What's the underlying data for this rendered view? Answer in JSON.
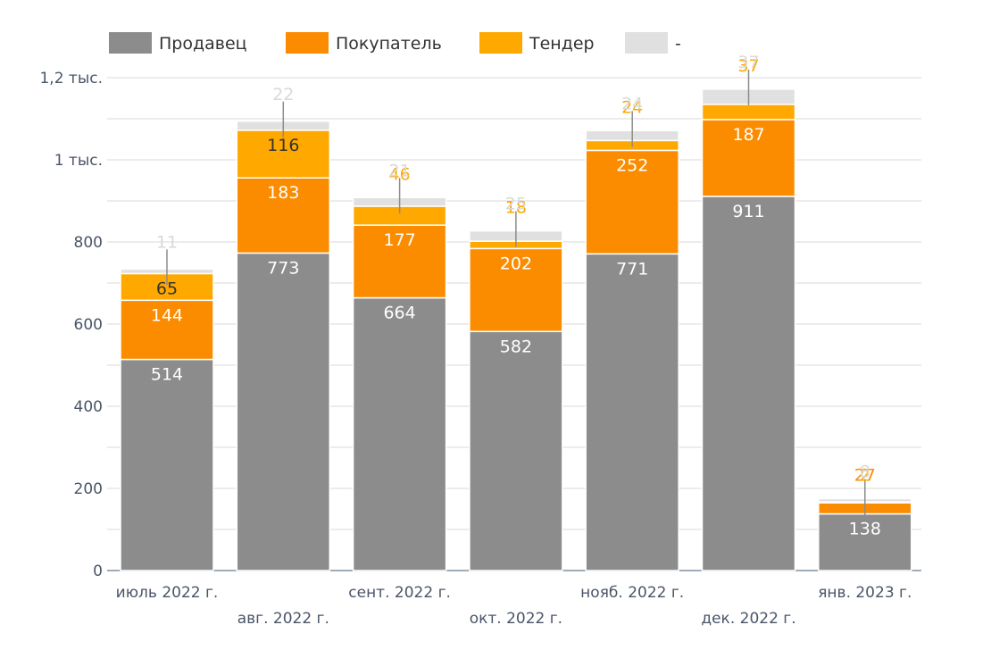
{
  "chart_data": {
    "type": "bar",
    "stacked": true,
    "categories": [
      "июль 2022 г.",
      "авг. 2022 г.",
      "сент. 2022 г.",
      "окт. 2022 г.",
      "нояб. 2022 г.",
      "дек. 2022 г.",
      "янв. 2023 г."
    ],
    "series": [
      {
        "name": "Продавец",
        "color": "#8c8c8c",
        "values": [
          514,
          773,
          664,
          582,
          771,
          911,
          138
        ]
      },
      {
        "name": "Покупатель",
        "color": "#fb8c00",
        "values": [
          144,
          183,
          177,
          202,
          252,
          187,
          27
        ]
      },
      {
        "name": "Тендер",
        "color": "#ffa800",
        "values": [
          65,
          116,
          46,
          18,
          24,
          37,
          2
        ]
      },
      {
        "name": "-",
        "color": "#e0e0e0",
        "values": [
          11,
          22,
          21,
          25,
          24,
          37,
          8
        ]
      }
    ],
    "ylim": [
      0,
      1200
    ],
    "y_ticks": [
      {
        "value": 0,
        "label": "0"
      },
      {
        "value": 200,
        "label": "200"
      },
      {
        "value": 400,
        "label": "400"
      },
      {
        "value": 600,
        "label": "600"
      },
      {
        "value": 800,
        "label": "800"
      },
      {
        "value": 1000,
        "label": "1 тыс."
      },
      {
        "value": 1200,
        "label": "1,2 тыс."
      }
    ],
    "grid": true,
    "legend_position": "top-left",
    "title": "",
    "xlabel": "",
    "ylabel": ""
  }
}
